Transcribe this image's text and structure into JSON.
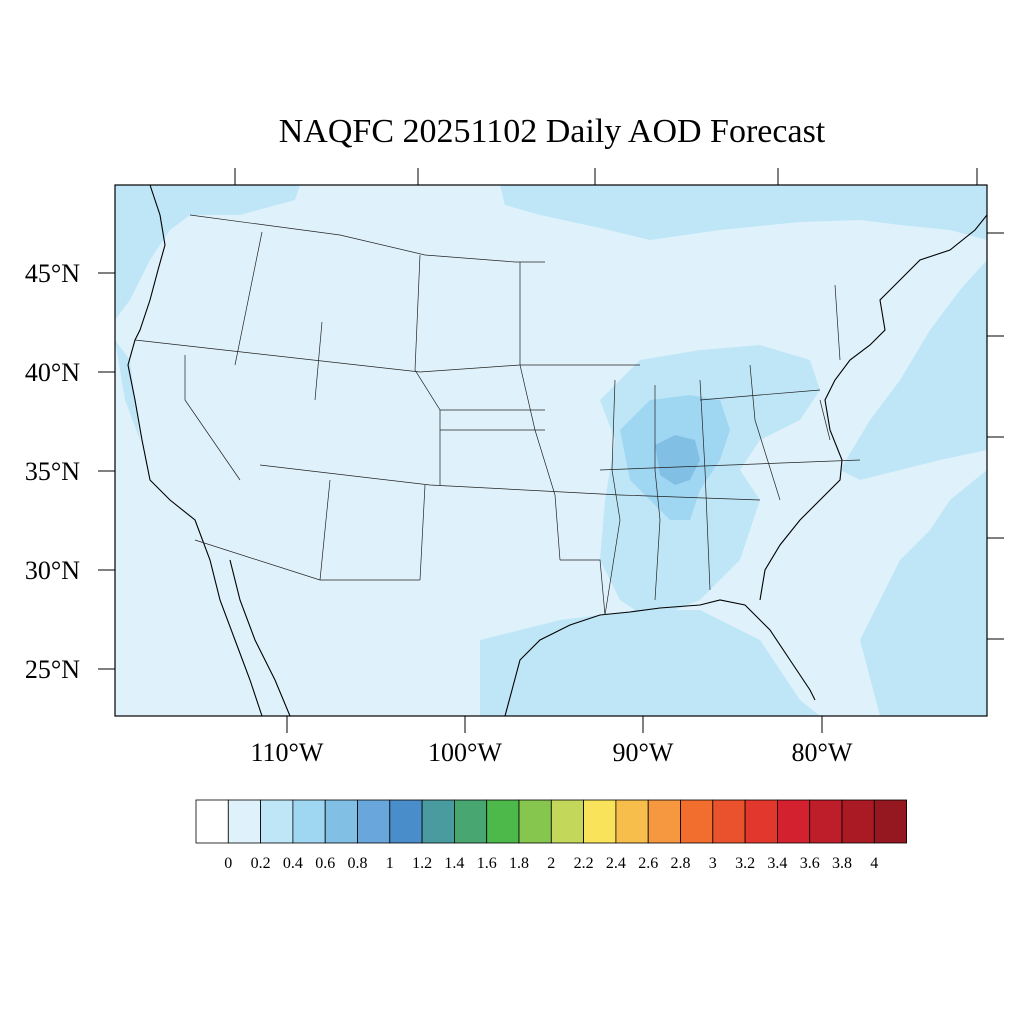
{
  "title": "NAQFC 20251102 Daily AOD Forecast",
  "lat_labels": [
    "45°N",
    "40°N",
    "35°N",
    "30°N",
    "25°N"
  ],
  "lon_labels": [
    "110°W",
    "100°W",
    "90°W",
    "80°W"
  ],
  "colorbar": {
    "labels": [
      "0",
      "0.2",
      "0.4",
      "0.6",
      "0.8",
      "1",
      "1.2",
      "1.4",
      "1.6",
      "1.8",
      "2",
      "2.2",
      "2.4",
      "2.6",
      "2.8",
      "3",
      "3.2",
      "3.4",
      "3.6",
      "3.8",
      "4"
    ],
    "colors": [
      "#ffffff",
      "#dff2fb",
      "#bfe6f7",
      "#9fd7f2",
      "#82bfe5",
      "#69a6dc",
      "#4a8dcb",
      "#4a9b9f",
      "#48a771",
      "#4cb94a",
      "#86c64f",
      "#c3d75a",
      "#f8e35b",
      "#f7be4b",
      "#f69840",
      "#f16e2e",
      "#e9522c",
      "#e2372c",
      "#d4212f",
      "#be1d2a",
      "#a91a25",
      "#951820"
    ]
  },
  "colors": {
    "background_aod": "#dff2fb",
    "aod_0_4": "#bfe6f7",
    "aod_0_6": "#9fd7f2",
    "aod_0_8": "#82bfe5"
  }
}
